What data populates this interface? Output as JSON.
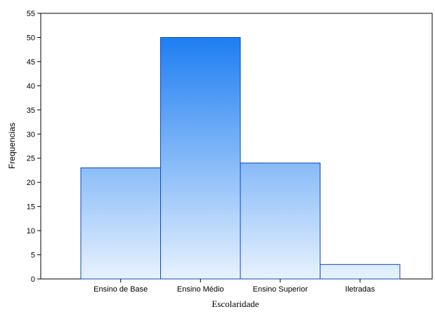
{
  "chart_data": {
    "type": "bar",
    "categories": [
      "Ensino de Base",
      "Ensino Médio",
      "Ensino Superior",
      "Iletradas"
    ],
    "values": [
      23,
      50,
      24,
      3
    ],
    "title": "",
    "xlabel": "Escolaridade",
    "ylabel": "Frequencias",
    "ylim": [
      0,
      55
    ],
    "yticks": [
      0,
      5,
      10,
      15,
      20,
      25,
      30,
      35,
      40,
      45,
      50,
      55
    ],
    "grid": false,
    "legend": "none",
    "colors": {
      "bar_top": "#1e7ef2",
      "bar_bottom": "#e8f2fe",
      "bar_stroke": "#0c48b6",
      "axis": "#000000"
    }
  }
}
